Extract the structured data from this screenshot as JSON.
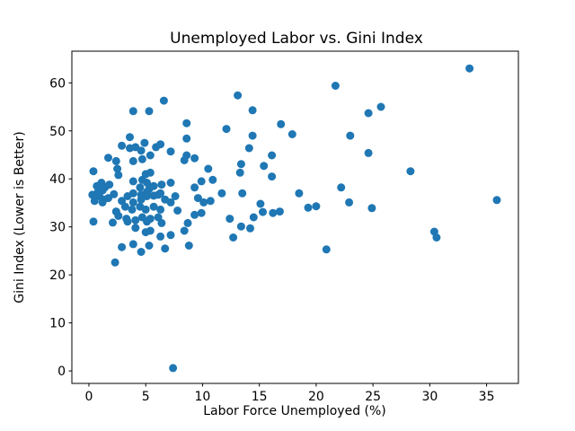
{
  "chart_data": {
    "type": "scatter",
    "title": "Unemployed Labor vs. Gini Index",
    "xlabel": "Labor Force Unemployed (%)",
    "ylabel": "Gini Index (Lower is Better)",
    "xlim": [
      -1.5,
      37.8
    ],
    "ylim": [
      -2.6,
      66.6
    ],
    "xticks": [
      0,
      5,
      10,
      15,
      20,
      25,
      30,
      35
    ],
    "yticks": [
      0,
      10,
      20,
      30,
      40,
      50,
      60
    ],
    "grid": false,
    "legend": "none",
    "marker_color": "#1f77b4",
    "marker_radius_px": 4.5,
    "points": [
      [
        33.5,
        63.0
      ],
      [
        21.7,
        59.4
      ],
      [
        13.1,
        57.4
      ],
      [
        6.6,
        56.3
      ],
      [
        14.4,
        54.3
      ],
      [
        3.9,
        54.1
      ],
      [
        5.3,
        54.1
      ],
      [
        25.7,
        55.0
      ],
      [
        24.6,
        53.7
      ],
      [
        8.6,
        51.6
      ],
      [
        16.9,
        51.4
      ],
      [
        12.1,
        50.4
      ],
      [
        14.4,
        49.0
      ],
      [
        17.9,
        49.3
      ],
      [
        23.0,
        49.0
      ],
      [
        8.6,
        48.4
      ],
      [
        3.6,
        48.7
      ],
      [
        2.9,
        46.9
      ],
      [
        3.6,
        46.4
      ],
      [
        4.1,
        46.6
      ],
      [
        4.9,
        47.5
      ],
      [
        4.6,
        45.9
      ],
      [
        5.9,
        46.6
      ],
      [
        6.3,
        47.2
      ],
      [
        7.2,
        45.7
      ],
      [
        8.6,
        44.9
      ],
      [
        9.3,
        44.3
      ],
      [
        14.1,
        46.4
      ],
      [
        16.1,
        44.9
      ],
      [
        24.6,
        45.4
      ],
      [
        28.3,
        41.6
      ],
      [
        35.9,
        35.6
      ],
      [
        30.4,
        29.0
      ],
      [
        30.6,
        27.8
      ],
      [
        20.9,
        25.3
      ],
      [
        12.7,
        27.8
      ],
      [
        7.4,
        0.6
      ],
      [
        1.7,
        44.4
      ],
      [
        2.4,
        43.7
      ],
      [
        4.7,
        44.1
      ],
      [
        5.4,
        44.9
      ],
      [
        3.9,
        43.7
      ],
      [
        8.4,
        43.9
      ],
      [
        13.4,
        43.1
      ],
      [
        15.4,
        42.7
      ],
      [
        13.3,
        41.3
      ],
      [
        16.1,
        40.5
      ],
      [
        0.4,
        41.6
      ],
      [
        2.5,
        42.1
      ],
      [
        2.6,
        40.8
      ],
      [
        5.0,
        41.0
      ],
      [
        5.4,
        41.3
      ],
      [
        10.5,
        42.1
      ],
      [
        10.9,
        39.8
      ],
      [
        0.7,
        38.5
      ],
      [
        1.1,
        39.2
      ],
      [
        1.4,
        38.2
      ],
      [
        1.8,
        38.8
      ],
      [
        1.2,
        37.6
      ],
      [
        0.8,
        37.3
      ],
      [
        3.9,
        39.5
      ],
      [
        4.7,
        39.8
      ],
      [
        5.1,
        39.2
      ],
      [
        4.5,
        38.2
      ],
      [
        5.3,
        37.9
      ],
      [
        5.7,
        38.5
      ],
      [
        6.4,
        38.8
      ],
      [
        7.2,
        39.2
      ],
      [
        9.3,
        38.2
      ],
      [
        9.9,
        39.5
      ],
      [
        22.2,
        38.2
      ],
      [
        13.5,
        37.0
      ],
      [
        18.5,
        37.0
      ],
      [
        11.7,
        37.0
      ],
      [
        0.3,
        36.7
      ],
      [
        0.9,
        36.4
      ],
      [
        1.3,
        35.7
      ],
      [
        2.2,
        36.8
      ],
      [
        1.7,
        36.0
      ],
      [
        3.4,
        36.4
      ],
      [
        3.9,
        37.0
      ],
      [
        4.6,
        36.7
      ],
      [
        5.1,
        37.3
      ],
      [
        5.7,
        36.5
      ],
      [
        6.3,
        37.0
      ],
      [
        0.5,
        35.4
      ],
      [
        1.2,
        35.1
      ],
      [
        2.9,
        35.4
      ],
      [
        3.9,
        35.1
      ],
      [
        4.6,
        35.7
      ],
      [
        5.1,
        36.4
      ],
      [
        6.1,
        36.7
      ],
      [
        6.7,
        35.7
      ],
      [
        7.2,
        35.1
      ],
      [
        7.6,
        36.4
      ],
      [
        9.6,
        36.0
      ],
      [
        10.1,
        35.1
      ],
      [
        10.7,
        35.4
      ],
      [
        22.9,
        35.1
      ],
      [
        24.9,
        33.9
      ],
      [
        19.3,
        34.0
      ],
      [
        20.0,
        34.3
      ],
      [
        15.1,
        34.8
      ],
      [
        3.2,
        34.2
      ],
      [
        3.8,
        33.6
      ],
      [
        4.5,
        34.2
      ],
      [
        5.0,
        33.6
      ],
      [
        5.7,
        34.2
      ],
      [
        6.3,
        33.6
      ],
      [
        7.8,
        33.4
      ],
      [
        2.4,
        33.2
      ],
      [
        15.3,
        33.1
      ],
      [
        16.2,
        32.9
      ],
      [
        16.8,
        33.2
      ],
      [
        2.6,
        32.3
      ],
      [
        3.3,
        31.7
      ],
      [
        4.1,
        31.4
      ],
      [
        4.7,
        32.0
      ],
      [
        5.4,
        31.7
      ],
      [
        6.1,
        32.0
      ],
      [
        9.3,
        32.5
      ],
      [
        9.9,
        32.9
      ],
      [
        14.5,
        32.0
      ],
      [
        12.4,
        31.7
      ],
      [
        0.4,
        31.1
      ],
      [
        2.1,
        30.9
      ],
      [
        3.4,
        31.1
      ],
      [
        5.1,
        31.1
      ],
      [
        6.4,
        30.8
      ],
      [
        8.7,
        30.8
      ],
      [
        4.1,
        29.8
      ],
      [
        5.0,
        28.9
      ],
      [
        5.4,
        29.2
      ],
      [
        6.3,
        28.0
      ],
      [
        7.2,
        28.3
      ],
      [
        8.4,
        29.2
      ],
      [
        13.4,
        30.1
      ],
      [
        14.2,
        29.7
      ],
      [
        8.8,
        26.1
      ],
      [
        2.9,
        25.8
      ],
      [
        3.9,
        26.4
      ],
      [
        4.6,
        24.8
      ],
      [
        5.3,
        26.1
      ],
      [
        6.7,
        25.5
      ],
      [
        2.3,
        22.6
      ]
    ]
  }
}
